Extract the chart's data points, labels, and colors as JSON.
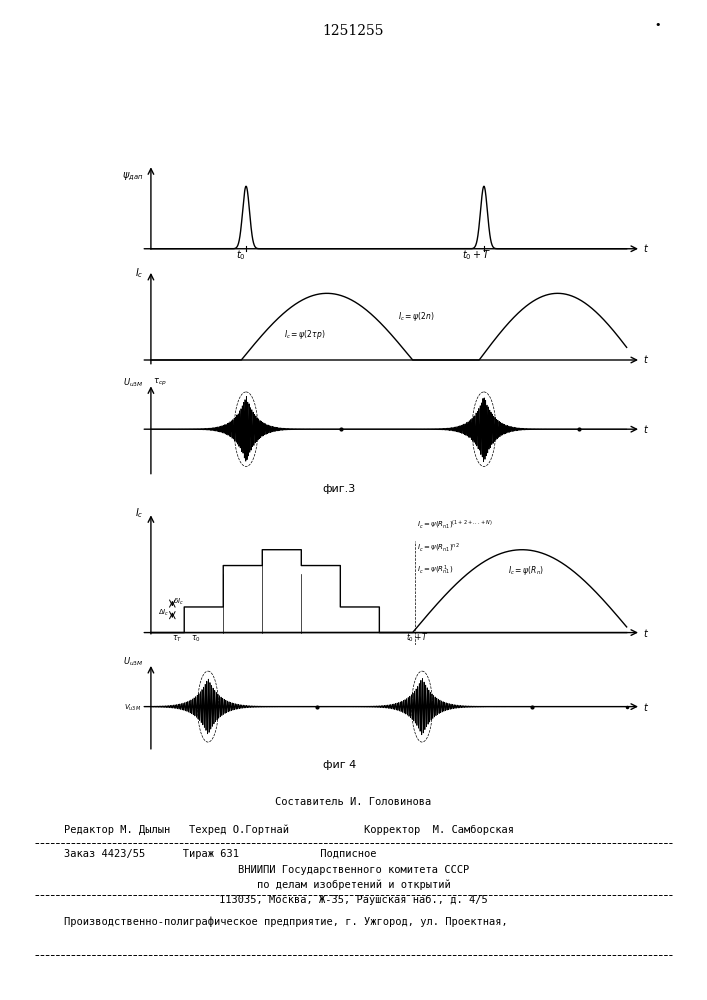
{
  "title": "1251255",
  "fig3_label": "фиг.3",
  "fig4_label": "фиг 4",
  "bg_color": "#ffffff",
  "line_color": "#000000",
  "footer_lines": [
    "Составитель И. Головинова",
    "Редактор М. Дылын   Техред О.Гортнай            Корректор  М. Самборская",
    "Заказ 4423/55      Тираж 631             Подписное",
    "ВНИИПИ Государственного комитета СССР",
    "по делам изобретений и открытий",
    "113035, Москва, Ж-35, Раушская наб., д. 4/5",
    "Производственно-полиграфическое предприятие, г. Ужгород, ул. Проектная,"
  ]
}
